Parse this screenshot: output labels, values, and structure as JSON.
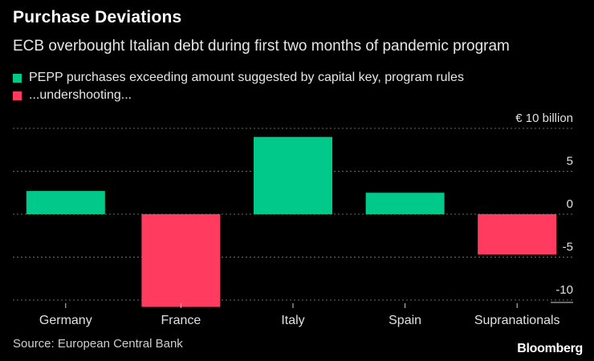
{
  "header": {
    "title": "Purchase Deviations",
    "subtitle": "ECB overbought Italian debt during first two months of pandemic program"
  },
  "legend": [
    {
      "label": "PEPP purchases exceeding amount suggested by capital key, program rules",
      "color": "#00c98a"
    },
    {
      "label": "...undershooting...",
      "color": "#ff3c5f"
    }
  ],
  "footer": {
    "source": "Source: European Central Bank",
    "brand": "Bloomberg"
  },
  "chart_data": {
    "type": "bar",
    "title": "Purchase Deviations",
    "unit_label": "€ 10 billion",
    "categories": [
      "Germany",
      "France",
      "Italy",
      "Spain",
      "Supranationals"
    ],
    "values": [
      2.7,
      -10.8,
      9.0,
      2.5,
      -4.7
    ],
    "ylim": [
      -10.8,
      10
    ],
    "yticks": [
      {
        "value": 10,
        "label": "€ 10 billion"
      },
      {
        "value": 5,
        "label": "5"
      },
      {
        "value": 0,
        "label": "0"
      },
      {
        "value": -5,
        "label": "-5"
      },
      {
        "value": -10,
        "label": "-10"
      }
    ],
    "positive_color": "#00c98a",
    "negative_color": "#ff3c5f",
    "grid": true,
    "xlabel": "",
    "ylabel": ""
  }
}
